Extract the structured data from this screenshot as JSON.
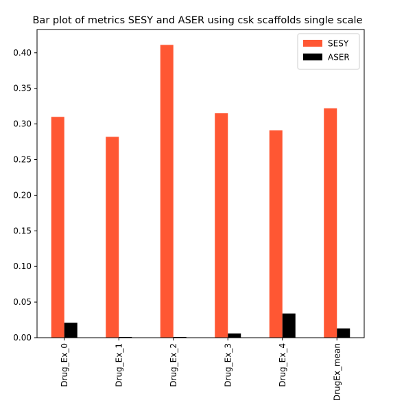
{
  "chart_data": {
    "type": "bar",
    "title": "Bar plot of metrics SESY and ASER using csk scaffolds single scale",
    "xlabel": "",
    "ylabel": "",
    "categories": [
      "Drug_Ex_0",
      "Drug_Ex_1",
      "Drug_Ex_2",
      "Drug_Ex_3",
      "Drug_Ex_4",
      "DrugEx_mean"
    ],
    "series": [
      {
        "name": "SESY",
        "color": "#ff5733",
        "values": [
          0.31,
          0.282,
          0.411,
          0.315,
          0.291,
          0.322
        ]
      },
      {
        "name": "ASER",
        "color": "#000000",
        "values": [
          0.021,
          0.001,
          0.001,
          0.006,
          0.034,
          0.013
        ]
      }
    ],
    "ylim": [
      0,
      0.4326
    ],
    "yticks": [
      0.0,
      0.05,
      0.1,
      0.15,
      0.2,
      0.25,
      0.3,
      0.35,
      0.4
    ],
    "ytick_labels": [
      "0.00",
      "0.05",
      "0.10",
      "0.15",
      "0.20",
      "0.25",
      "0.30",
      "0.35",
      "0.40"
    ],
    "legend_position": "top-right",
    "grid": false
  }
}
